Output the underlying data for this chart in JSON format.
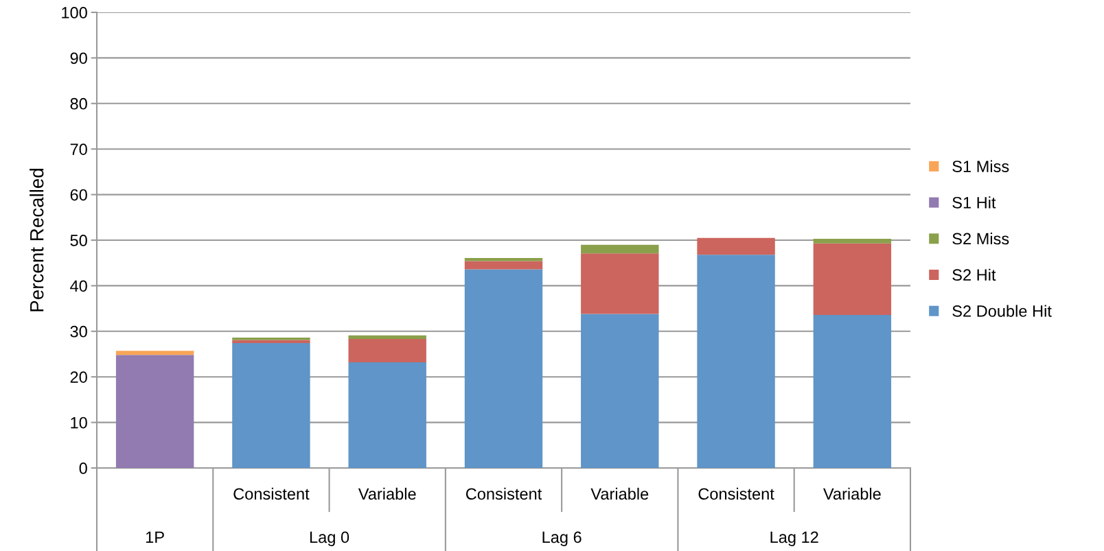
{
  "chart_data": {
    "type": "bar",
    "stacked": true,
    "ylabel": "Percent Recalled",
    "categories": [
      null,
      "Consistent",
      "Variable",
      "Consistent",
      "Variable",
      "Consistent",
      "Variable"
    ],
    "annotations": [
      "1P",
      "Lag 0",
      "Lag 6",
      "Lag 12"
    ],
    "series": [
      {
        "name": "S2 Double Hit",
        "color": "#5f95c8",
        "values": [
          null,
          27.4,
          23.2,
          43.6,
          33.8,
          46.8,
          33.6
        ]
      },
      {
        "name": "S2 Hit",
        "color": "#cc655e",
        "values": [
          null,
          0.7,
          5.1,
          1.8,
          13.3,
          3.7,
          15.7
        ]
      },
      {
        "name": "S2 Miss",
        "color": "#8aa04b",
        "values": [
          null,
          0.5,
          0.8,
          0.7,
          1.9,
          null,
          1.0
        ]
      },
      {
        "name": "S1 Hit",
        "color": "#927bb0",
        "values": [
          24.8,
          null,
          null,
          null,
          null,
          null,
          null
        ]
      },
      {
        "name": "S1 Miss",
        "color": "#f8a557",
        "values": [
          0.9,
          null,
          null,
          null,
          null,
          null,
          null
        ]
      }
    ],
    "ylim": [
      0,
      100
    ],
    "yticks": [
      0,
      10,
      20,
      30,
      40,
      50,
      60,
      70,
      80,
      90,
      100
    ],
    "grid": "y",
    "legend": "right"
  }
}
